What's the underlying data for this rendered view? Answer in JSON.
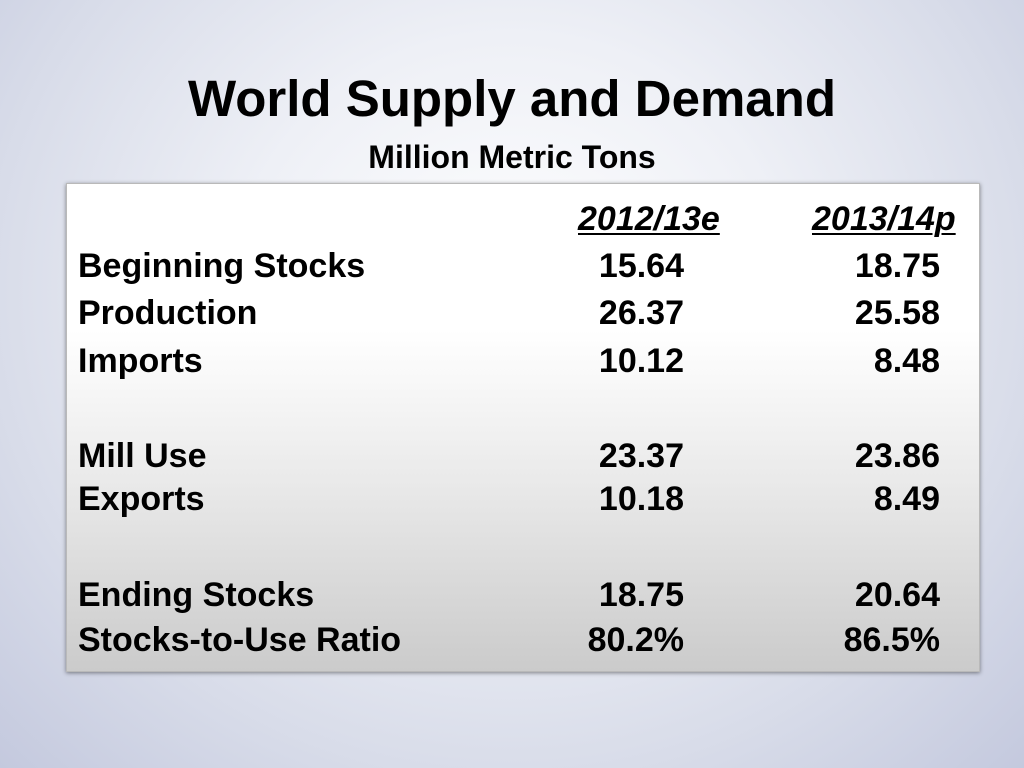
{
  "slide": {
    "title": "World Supply and Demand",
    "subtitle": "Million Metric Tons"
  },
  "table": {
    "columns": [
      "2012/13e",
      "2013/14p"
    ],
    "rows": [
      {
        "label": "Beginning Stocks",
        "values": [
          "15.64",
          "18.75"
        ]
      },
      {
        "label": "Production",
        "values": [
          "26.37",
          "25.58"
        ]
      },
      {
        "label": "Imports",
        "values": [
          "10.12",
          "8.48"
        ]
      },
      {
        "label": "Mill Use",
        "values": [
          "23.37",
          "23.86"
        ]
      },
      {
        "label": "Exports",
        "values": [
          "10.18",
          "8.49"
        ]
      },
      {
        "label": "Ending Stocks",
        "values": [
          "18.75",
          "20.64"
        ]
      },
      {
        "label": "Stocks-to-Use Ratio",
        "values": [
          "80.2%",
          "86.5%"
        ]
      }
    ]
  }
}
